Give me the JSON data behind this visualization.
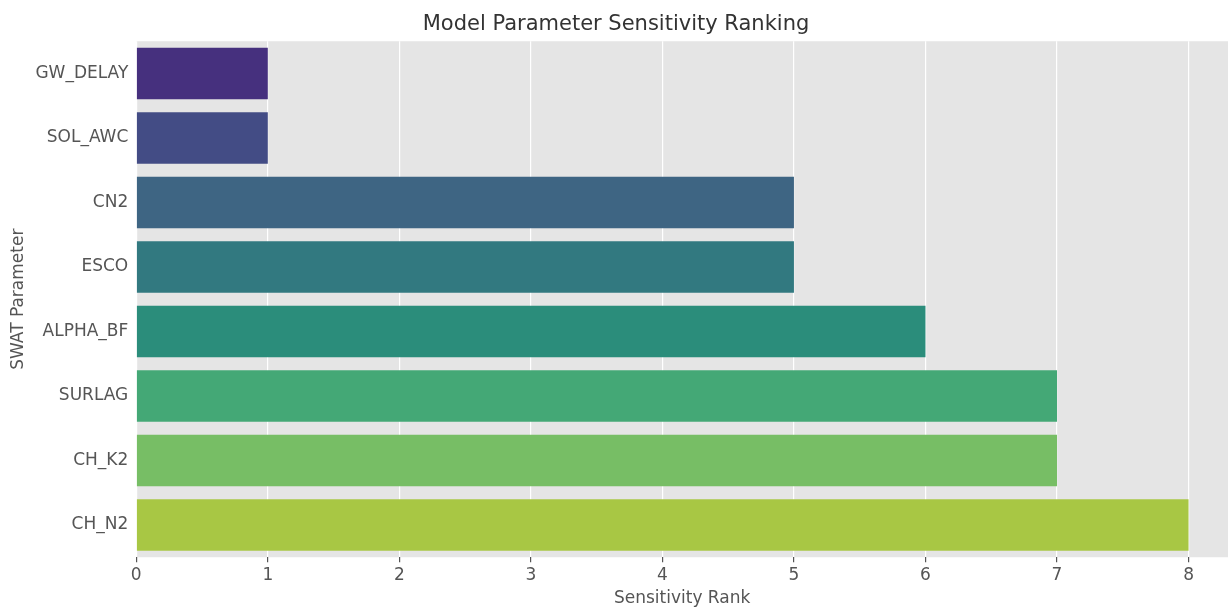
{
  "chart_data": {
    "type": "bar",
    "orientation": "horizontal",
    "title": "Model Parameter Sensitivity Ranking",
    "xlabel": "Sensitivity Rank",
    "ylabel": "SWAT Parameter",
    "categories": [
      "GW_DELAY",
      "SOL_AWC",
      "CN2",
      "ESCO",
      "ALPHA_BF",
      "SURLAG",
      "CH_K2",
      "CH_N2"
    ],
    "values": [
      1,
      1,
      5,
      5,
      6,
      7,
      7,
      8
    ],
    "colors": [
      "#46307e",
      "#434c85",
      "#3e6583",
      "#327980",
      "#2b8d7b",
      "#44a876",
      "#77be65",
      "#a8c744"
    ],
    "xlim": [
      0,
      8.3
    ],
    "xticks": [
      0,
      1,
      2,
      3,
      4,
      5,
      6,
      7,
      8
    ],
    "grid": "x"
  }
}
